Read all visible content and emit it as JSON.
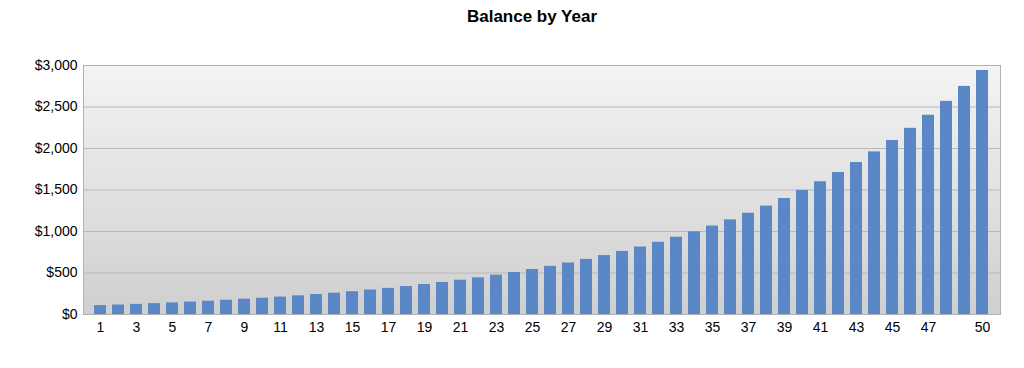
{
  "chart_data": {
    "type": "bar",
    "title": "Balance by Year",
    "categories": [
      "1",
      null,
      "3",
      null,
      "5",
      null,
      "7",
      null,
      "9",
      null,
      "11",
      null,
      "13",
      null,
      "15",
      null,
      "17",
      null,
      "19",
      null,
      "21",
      null,
      "23",
      null,
      "25",
      null,
      "27",
      null,
      "29",
      null,
      "31",
      null,
      "33",
      null,
      "35",
      null,
      "37",
      null,
      "39",
      null,
      "41",
      null,
      "43",
      null,
      "45",
      null,
      "47",
      null,
      null,
      "50"
    ],
    "values": [
      107,
      114,
      122,
      131,
      140,
      150,
      160,
      172,
      184,
      196,
      210,
      225,
      241,
      257,
      275,
      295,
      315,
      337,
      361,
      386,
      413,
      442,
      473,
      506,
      542,
      580,
      620,
      664,
      710,
      760,
      813,
      870,
      931,
      996,
      1066,
      1140,
      1220,
      1306,
      1397,
      1495,
      1599,
      1711,
      1831,
      1959,
      2096,
      2243,
      2400,
      2568,
      2748,
      2940
    ],
    "color": "#5b87c6",
    "ylim": [
      0,
      3000
    ],
    "yticks": [
      {
        "value": 0,
        "label": "$0"
      },
      {
        "value": 500,
        "label": "$500"
      },
      {
        "value": 1000,
        "label": "$1,000"
      },
      {
        "value": 1500,
        "label": "$1,500"
      },
      {
        "value": 2000,
        "label": "$2,000"
      },
      {
        "value": 2500,
        "label": "$2,500"
      },
      {
        "value": 3000,
        "label": "$3,000"
      }
    ],
    "grid": true
  }
}
